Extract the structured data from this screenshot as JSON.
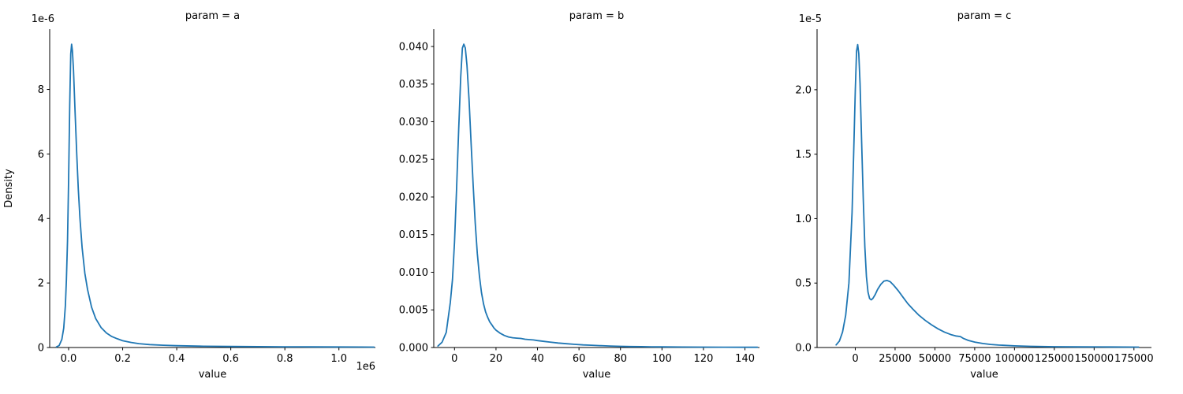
{
  "figure": {
    "background": "#ffffff",
    "line_color": "#1f77b4",
    "text_color": "#000000"
  },
  "chart_data": [
    {
      "type": "line",
      "kind": "kde",
      "title": "param = a",
      "xlabel": "value",
      "ylabel": "Density",
      "y_offset_label": "1e-6",
      "x_offset_label": "1e6",
      "legend": "none",
      "grid": false,
      "xlim": [
        -70000,
        1135000
      ],
      "ylim": [
        0,
        9.87e-06
      ],
      "xticks": [
        {
          "v": 0,
          "label": "0.0"
        },
        {
          "v": 200000,
          "label": "0.2"
        },
        {
          "v": 400000,
          "label": "0.4"
        },
        {
          "v": 600000,
          "label": "0.6"
        },
        {
          "v": 800000,
          "label": "0.8"
        },
        {
          "v": 1000000,
          "label": "1.0"
        }
      ],
      "yticks": [
        {
          "v": 0,
          "label": "0"
        },
        {
          "v": 2e-06,
          "label": "2"
        },
        {
          "v": 4e-06,
          "label": "4"
        },
        {
          "v": 6e-06,
          "label": "6"
        },
        {
          "v": 8e-06,
          "label": "8"
        }
      ],
      "points": [
        [
          -45000,
          2e-08
        ],
        [
          -35000,
          6e-08
        ],
        [
          -25000,
          2.5e-07
        ],
        [
          -18000,
          6e-07
        ],
        [
          -12000,
          1.3e-06
        ],
        [
          -8000,
          2.1e-06
        ],
        [
          -4000,
          3.3e-06
        ],
        [
          0,
          5.2e-06
        ],
        [
          4000,
          7.5e-06
        ],
        [
          8000,
          9.1e-06
        ],
        [
          11000,
          9.4e-06
        ],
        [
          14000,
          9.2e-06
        ],
        [
          18000,
          8.6e-06
        ],
        [
          24000,
          7.3e-06
        ],
        [
          30000,
          6e-06
        ],
        [
          36000,
          4.9e-06
        ],
        [
          42000,
          4e-06
        ],
        [
          50000,
          3.1e-06
        ],
        [
          60000,
          2.3e-06
        ],
        [
          70000,
          1.8e-06
        ],
        [
          85000,
          1.25e-06
        ],
        [
          100000,
          9e-07
        ],
        [
          120000,
          6.2e-07
        ],
        [
          140000,
          4.5e-07
        ],
        [
          160000,
          3.4e-07
        ],
        [
          180000,
          2.7e-07
        ],
        [
          200000,
          2.1e-07
        ],
        [
          230000,
          1.6e-07
        ],
        [
          260000,
          1.2e-07
        ],
        [
          300000,
          9e-08
        ],
        [
          350000,
          7e-08
        ],
        [
          400000,
          5.5e-08
        ],
        [
          500000,
          4e-08
        ],
        [
          600000,
          3.2e-08
        ],
        [
          700000,
          2.7e-08
        ],
        [
          800000,
          2.3e-08
        ],
        [
          900000,
          2e-08
        ],
        [
          1000000,
          1.8e-08
        ],
        [
          1080000,
          1.5e-08
        ],
        [
          1130000,
          1.2e-08
        ]
      ]
    },
    {
      "type": "line",
      "kind": "kde",
      "title": "param = b",
      "xlabel": "value",
      "ylabel": "",
      "y_offset_label": "",
      "x_offset_label": "",
      "legend": "none",
      "grid": false,
      "xlim": [
        -10,
        147
      ],
      "ylim": [
        0,
        0.0423
      ],
      "xticks": [
        {
          "v": 0,
          "label": "0"
        },
        {
          "v": 20,
          "label": "20"
        },
        {
          "v": 40,
          "label": "40"
        },
        {
          "v": 60,
          "label": "60"
        },
        {
          "v": 80,
          "label": "80"
        },
        {
          "v": 100,
          "label": "100"
        },
        {
          "v": 120,
          "label": "120"
        },
        {
          "v": 140,
          "label": "140"
        }
      ],
      "yticks": [
        {
          "v": 0.0,
          "label": "0.000"
        },
        {
          "v": 0.005,
          "label": "0.005"
        },
        {
          "v": 0.01,
          "label": "0.010"
        },
        {
          "v": 0.015,
          "label": "0.015"
        },
        {
          "v": 0.02,
          "label": "0.020"
        },
        {
          "v": 0.025,
          "label": "0.025"
        },
        {
          "v": 0.03,
          "label": "0.030"
        },
        {
          "v": 0.035,
          "label": "0.035"
        },
        {
          "v": 0.04,
          "label": "0.040"
        }
      ],
      "points": [
        [
          -8,
          0.0002
        ],
        [
          -6,
          0.0007
        ],
        [
          -4,
          0.002
        ],
        [
          -2,
          0.006
        ],
        [
          -1,
          0.009
        ],
        [
          0,
          0.014
        ],
        [
          1,
          0.021
        ],
        [
          2,
          0.029
        ],
        [
          3,
          0.036
        ],
        [
          3.8,
          0.0398
        ],
        [
          4.5,
          0.0403
        ],
        [
          5.2,
          0.0398
        ],
        [
          6,
          0.0375
        ],
        [
          7,
          0.033
        ],
        [
          8,
          0.027
        ],
        [
          9,
          0.0215
        ],
        [
          10,
          0.0165
        ],
        [
          11,
          0.0125
        ],
        [
          12,
          0.0095
        ],
        [
          13,
          0.0073
        ],
        [
          14,
          0.0058
        ],
        [
          15,
          0.0047
        ],
        [
          16,
          0.004
        ],
        [
          17,
          0.0034
        ],
        [
          18,
          0.003
        ],
        [
          19,
          0.0026
        ],
        [
          20,
          0.0023
        ],
        [
          22,
          0.0019
        ],
        [
          24,
          0.0016
        ],
        [
          26,
          0.0014
        ],
        [
          28,
          0.0013
        ],
        [
          30,
          0.00125
        ],
        [
          32,
          0.0012
        ],
        [
          34,
          0.0011
        ],
        [
          36,
          0.00105
        ],
        [
          38,
          0.001
        ],
        [
          40,
          0.00092
        ],
        [
          43,
          0.00082
        ],
        [
          46,
          0.00072
        ],
        [
          50,
          0.0006
        ],
        [
          54,
          0.0005
        ],
        [
          58,
          0.00042
        ],
        [
          62,
          0.00035
        ],
        [
          66,
          0.0003
        ],
        [
          70,
          0.00025
        ],
        [
          75,
          0.0002
        ],
        [
          80,
          0.00016
        ],
        [
          85,
          0.00013
        ],
        [
          90,
          0.00011
        ],
        [
          95,
          9e-05
        ],
        [
          100,
          8e-05
        ],
        [
          110,
          6e-05
        ],
        [
          120,
          5e-05
        ],
        [
          130,
          4e-05
        ],
        [
          140,
          3.5e-05
        ],
        [
          146,
          3e-05
        ]
      ]
    },
    {
      "type": "line",
      "kind": "kde",
      "title": "param = c",
      "xlabel": "value",
      "ylabel": "",
      "y_offset_label": "1e-5",
      "x_offset_label": "",
      "legend": "none",
      "grid": false,
      "xlim": [
        -24000,
        186000
      ],
      "ylim": [
        0,
        2.47e-05
      ],
      "xticks": [
        {
          "v": 0,
          "label": "0"
        },
        {
          "v": 25000,
          "label": "25000"
        },
        {
          "v": 50000,
          "label": "50000"
        },
        {
          "v": 75000,
          "label": "75000"
        },
        {
          "v": 100000,
          "label": "100000"
        },
        {
          "v": 125000,
          "label": "125000"
        },
        {
          "v": 150000,
          "label": "150000"
        },
        {
          "v": 175000,
          "label": "175000"
        }
      ],
      "yticks": [
        {
          "v": 0,
          "label": "0.0"
        },
        {
          "v": 5e-06,
          "label": "0.5"
        },
        {
          "v": 1e-05,
          "label": "1.0"
        },
        {
          "v": 1.5e-05,
          "label": "1.5"
        },
        {
          "v": 2e-05,
          "label": "2.0"
        }
      ],
      "points": [
        [
          -12000,
          2e-07
        ],
        [
          -10000,
          5e-07
        ],
        [
          -8000,
          1.2e-06
        ],
        [
          -6000,
          2.5e-06
        ],
        [
          -4000,
          5e-06
        ],
        [
          -2000,
          1.05e-05
        ],
        [
          -1000,
          1.5e-05
        ],
        [
          0,
          2e-05
        ],
        [
          800,
          2.3e-05
        ],
        [
          1500,
          2.35e-05
        ],
        [
          2200,
          2.28e-05
        ],
        [
          3000,
          2.05e-05
        ],
        [
          4000,
          1.6e-05
        ],
        [
          5000,
          1.15e-05
        ],
        [
          6000,
          7.8e-06
        ],
        [
          7000,
          5.5e-06
        ],
        [
          8000,
          4.3e-06
        ],
        [
          9000,
          3.8e-06
        ],
        [
          10000,
          3.7e-06
        ],
        [
          11000,
          3.8e-06
        ],
        [
          12500,
          4.1e-06
        ],
        [
          14000,
          4.5e-06
        ],
        [
          16000,
          4.9e-06
        ],
        [
          18000,
          5.15e-06
        ],
        [
          20000,
          5.2e-06
        ],
        [
          22000,
          5.1e-06
        ],
        [
          24000,
          4.85e-06
        ],
        [
          27000,
          4.4e-06
        ],
        [
          30000,
          3.9e-06
        ],
        [
          33000,
          3.4e-06
        ],
        [
          36000,
          3e-06
        ],
        [
          40000,
          2.5e-06
        ],
        [
          44000,
          2.1e-06
        ],
        [
          48000,
          1.75e-06
        ],
        [
          52000,
          1.45e-06
        ],
        [
          56000,
          1.2e-06
        ],
        [
          60000,
          1e-06
        ],
        [
          63000,
          9e-07
        ],
        [
          66000,
          8.5e-07
        ],
        [
          68000,
          7e-07
        ],
        [
          71000,
          5.5e-07
        ],
        [
          75000,
          4.2e-07
        ],
        [
          80000,
          3.1e-07
        ],
        [
          85000,
          2.4e-07
        ],
        [
          90000,
          1.9e-07
        ],
        [
          100000,
          1.3e-07
        ],
        [
          110000,
          9e-08
        ],
        [
          125000,
          6e-08
        ],
        [
          140000,
          5e-08
        ],
        [
          160000,
          4e-08
        ],
        [
          178000,
          3e-08
        ]
      ]
    }
  ]
}
